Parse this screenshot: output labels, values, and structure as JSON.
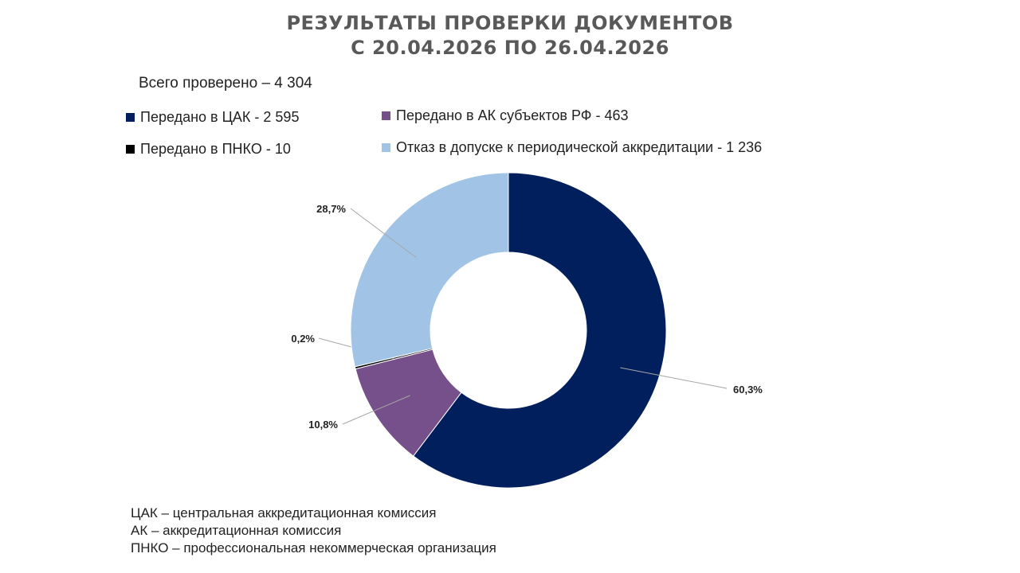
{
  "title_line1": "РЕЗУЛЬТАТЫ ПРОВЕРКИ ДОКУМЕНТОВ",
  "title_line2": "С 20.04.2026  ПО 26.04.2026",
  "total_text": "Всего проверено – 4 304",
  "legend": [
    {
      "label": "Передано в ЦАК - 2 595",
      "color": "#001F5C"
    },
    {
      "label": "Передано в АК субъектов РФ - 463",
      "color": "#76508A"
    },
    {
      "label": "Передано в ПНКО - 10",
      "color": "#000000"
    },
    {
      "label": "Отказ в допуске к периодической аккредитации - 1 236",
      "color": "#A1C4E6"
    }
  ],
  "chart_data": {
    "type": "pie",
    "title": "РЕЗУЛЬТАТЫ ПРОВЕРКИ ДОКУМЕНТОВ С 20.04.2026  ПО 26.04.2026",
    "donut": true,
    "slices": [
      {
        "label": "Передано в ЦАК",
        "value": 2595,
        "percent_label": "60,3%",
        "color": "#001F5C"
      },
      {
        "label": "Передано в АК субъектов РФ",
        "value": 463,
        "percent_label": "10,8%",
        "color": "#76508A"
      },
      {
        "label": "Передано в ПНКО",
        "value": 10,
        "percent_label": "0,2%",
        "color": "#000000"
      },
      {
        "label": "Отказ в допуске к периодической аккредитации",
        "value": 1236,
        "percent_label": "28,7%",
        "color": "#A1C4E6"
      }
    ],
    "total": 4304
  },
  "footnotes": [
    "ЦАК – центральная аккредитационная комиссия",
    "АК – аккредитационная комиссия",
    "ПНКО – профессиональная некоммерческая организация"
  ]
}
